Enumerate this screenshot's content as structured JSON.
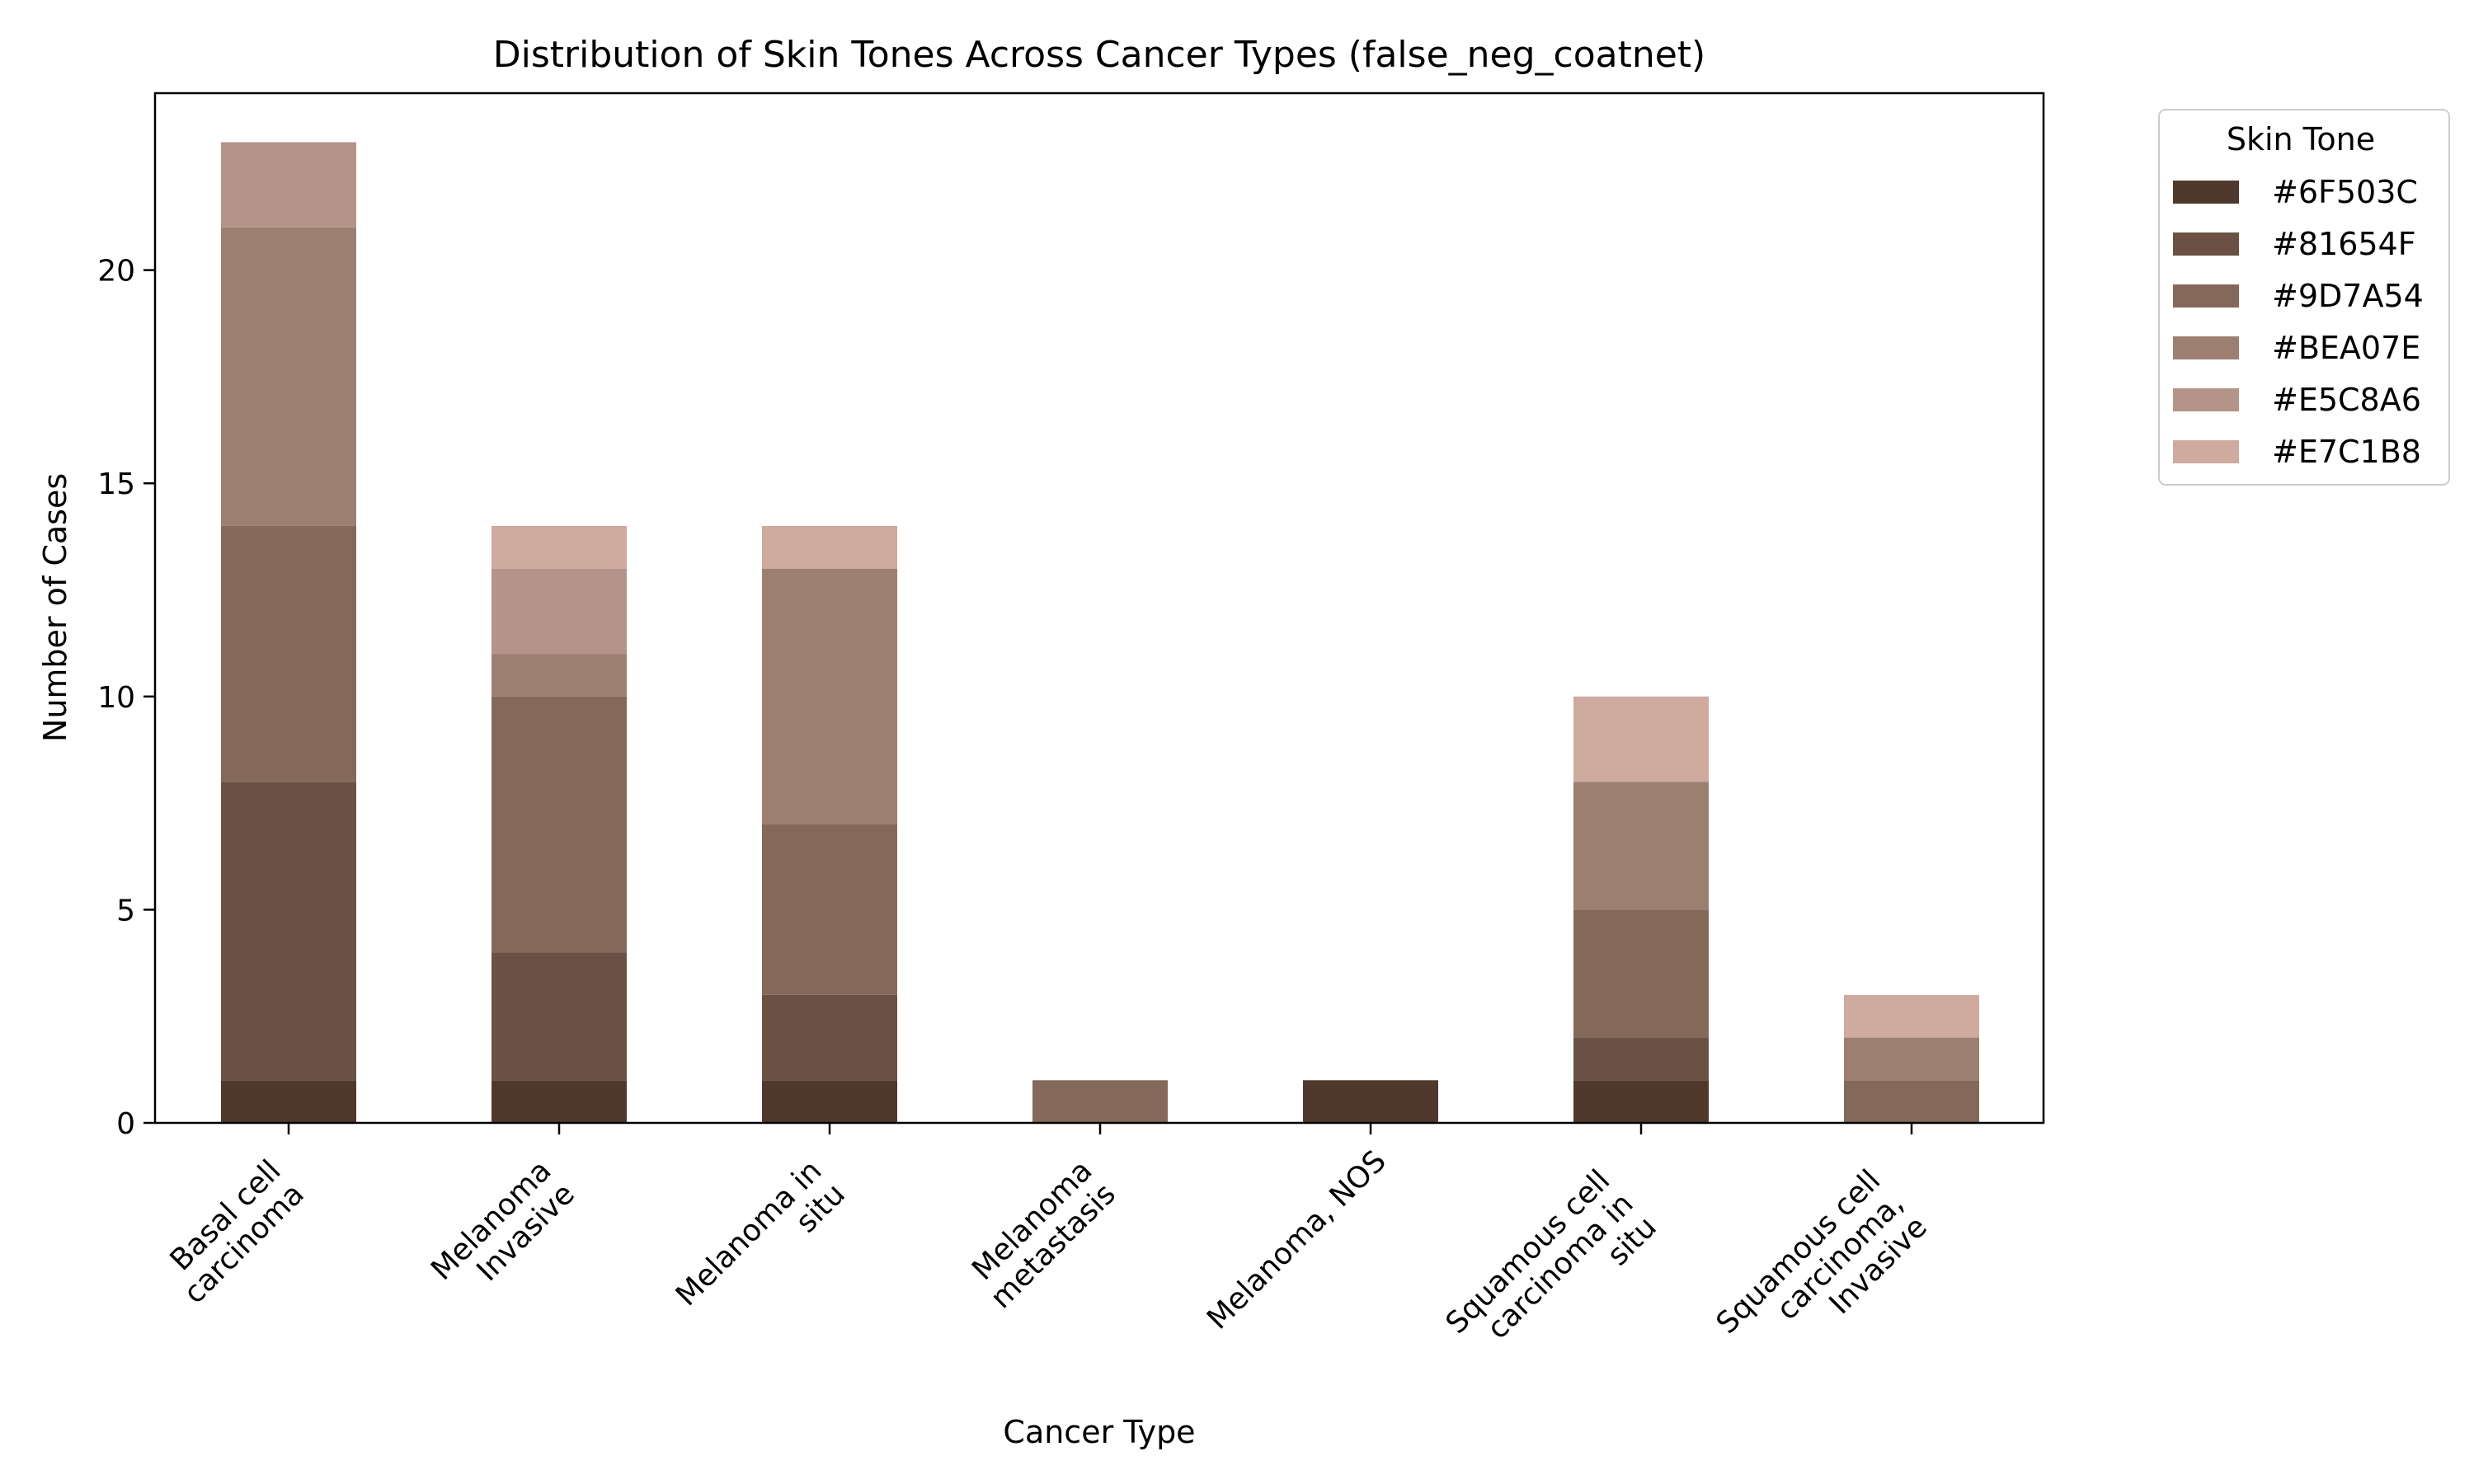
{
  "chart_data": {
    "type": "bar",
    "stacked": true,
    "title": "Distribution of Skin Tones Across Cancer Types (false_neg_coatnet)",
    "xlabel": "Cancer Type",
    "ylabel": "Number of Cases",
    "ylim": [
      0,
      24.15
    ],
    "yticks": [
      0,
      5,
      10,
      15,
      20
    ],
    "grid": false,
    "legend_title": "Skin Tone",
    "legend_position": "outside top-right",
    "categories": [
      [
        "Basal cell",
        "carcinoma"
      ],
      [
        "Melanoma",
        "Invasive"
      ],
      [
        "Melanoma in",
        "situ"
      ],
      [
        "Melanoma",
        "metastasis"
      ],
      [
        "Melanoma, NOS"
      ],
      [
        "Squamous cell",
        "carcinoma in",
        "situ"
      ],
      [
        "Squamous cell",
        "carcinoma,",
        "Invasive"
      ]
    ],
    "series": [
      {
        "name": "#6F503C",
        "color": "#50392C",
        "values": [
          1,
          1,
          1,
          0,
          1,
          1,
          0
        ]
      },
      {
        "name": "#81654F",
        "color": "#6A5143",
        "values": [
          7,
          3,
          2,
          0,
          0,
          1,
          0
        ]
      },
      {
        "name": "#9D7A54",
        "color": "#84695A",
        "values": [
          6,
          6,
          4,
          1,
          0,
          3,
          1
        ]
      },
      {
        "name": "#BEA07E",
        "color": "#9D7F71",
        "values": [
          7,
          1,
          6,
          0,
          0,
          3,
          1
        ]
      },
      {
        "name": "#E5C8A6",
        "color": "#B49488",
        "values": [
          2,
          2,
          0,
          0,
          0,
          0,
          0
        ]
      },
      {
        "name": "#E7C1B8",
        "color": "#CEAA9F",
        "values": [
          0,
          1,
          1,
          0,
          0,
          2,
          1
        ]
      }
    ]
  }
}
